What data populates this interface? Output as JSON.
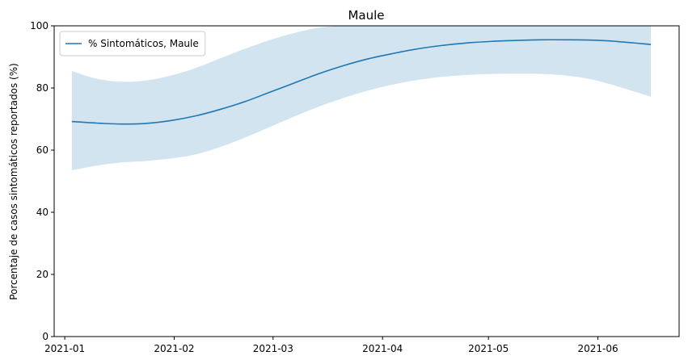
{
  "chart_data": {
    "type": "line",
    "title": "Maule",
    "xlabel": "",
    "ylabel": "Porcentaje de casos sintomáticos reportados (%)",
    "ylim": [
      0,
      100
    ],
    "xlim": [
      "2020-12-29",
      "2021-06-24"
    ],
    "grid": false,
    "legend": "upper-left",
    "y_ticks": [
      0,
      20,
      40,
      60,
      80,
      100
    ],
    "x_ticks": [
      {
        "date": "2021-01-01",
        "label": "2021-01"
      },
      {
        "date": "2021-02-01",
        "label": "2021-02"
      },
      {
        "date": "2021-03-01",
        "label": "2021-03"
      },
      {
        "date": "2021-04-01",
        "label": "2021-04"
      },
      {
        "date": "2021-05-01",
        "label": "2021-05"
      },
      {
        "date": "2021-06-01",
        "label": "2021-06"
      }
    ],
    "series": [
      {
        "name": "% Sintomáticos, Maule",
        "color": "#1f77b4",
        "band_color": "#1f77b4",
        "x": [
          "2021-01-03",
          "2021-01-10",
          "2021-01-17",
          "2021-01-24",
          "2021-01-31",
          "2021-02-07",
          "2021-02-14",
          "2021-02-21",
          "2021-02-28",
          "2021-03-07",
          "2021-03-14",
          "2021-03-21",
          "2021-03-28",
          "2021-04-04",
          "2021-04-11",
          "2021-04-18",
          "2021-04-25",
          "2021-05-02",
          "2021-05-09",
          "2021-05-16",
          "2021-05-23",
          "2021-05-30",
          "2021-06-06",
          "2021-06-16"
        ],
        "values": [
          69.2,
          68.7,
          68.4,
          68.6,
          69.5,
          71.0,
          73.1,
          75.6,
          78.6,
          81.6,
          84.6,
          87.2,
          89.4,
          91.1,
          92.6,
          93.7,
          94.5,
          95.0,
          95.3,
          95.5,
          95.5,
          95.4,
          95.0,
          94.0
        ],
        "lower": [
          53.5,
          55.0,
          56.0,
          56.5,
          57.3,
          58.6,
          61.0,
          64.0,
          67.4,
          70.8,
          74.0,
          76.8,
          79.2,
          81.1,
          82.6,
          83.6,
          84.2,
          84.5,
          84.6,
          84.5,
          84.0,
          82.8,
          80.7,
          77.2
        ],
        "upper": [
          85.5,
          83.0,
          82.0,
          82.4,
          84.0,
          86.4,
          89.5,
          92.6,
          95.4,
          97.7,
          99.4,
          100.0,
          100.0,
          100.0,
          100.0,
          100.0,
          100.0,
          100.0,
          100.0,
          100.0,
          100.0,
          100.0,
          100.0,
          100.0
        ]
      }
    ]
  }
}
